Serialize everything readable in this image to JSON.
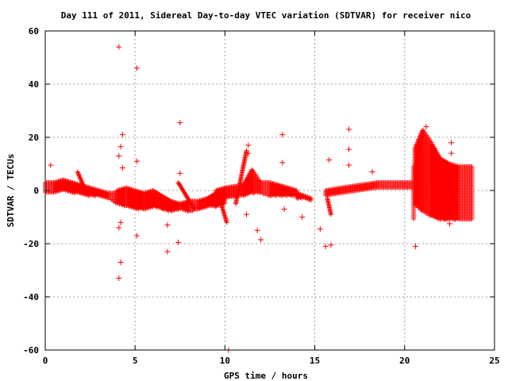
{
  "chart_data": {
    "type": "scatter",
    "title": "Day 111 of 2011, Sidereal Day-to-day VTEC variation (SDTVAR) for receiver nico",
    "xlabel": "GPS time / hours",
    "ylabel": "SDTVAR / TECUs",
    "xlim": [
      0,
      25
    ],
    "ylim": [
      -60,
      60
    ],
    "xticks": [
      "0",
      "5",
      "10",
      "15",
      "20",
      "25"
    ],
    "yticks": [
      "60",
      "40",
      "20",
      "0",
      "-20",
      "-40",
      "-60"
    ],
    "grid": true,
    "marker": "plus",
    "color": "#ff0000",
    "bands": [
      {
        "x": [
          0.0,
          0.5,
          1.0,
          1.5,
          2.0
        ],
        "lo": [
          -1,
          -1,
          0,
          -1,
          -1
        ],
        "hi": [
          3,
          3,
          4,
          3,
          2
        ]
      },
      {
        "x": [
          2.0,
          2.5,
          3.0,
          3.5,
          4.0
        ],
        "lo": [
          -1,
          -2,
          -2,
          -3,
          -5
        ],
        "hi": [
          2,
          1,
          0,
          -1,
          -1
        ]
      },
      {
        "x": [
          4.0,
          4.5,
          5.0,
          5.5,
          6.0
        ],
        "lo": [
          -5,
          -6,
          -7,
          -7,
          -6
        ],
        "hi": [
          0,
          1,
          0,
          -1,
          0
        ]
      },
      {
        "x": [
          6.0,
          6.5,
          7.0,
          7.5,
          8.0
        ],
        "lo": [
          -6,
          -7,
          -8,
          -7,
          -8
        ],
        "hi": [
          0,
          -2,
          -4,
          -5,
          -4
        ]
      },
      {
        "x": [
          8.0,
          8.5,
          9.0,
          9.5,
          10.0
        ],
        "lo": [
          -8,
          -7,
          -6,
          -6,
          -5
        ],
        "hi": [
          -4,
          -4,
          -3,
          -1,
          0
        ]
      },
      {
        "x": [
          9.5,
          10.0,
          11.0,
          11.5,
          12.0
        ],
        "lo": [
          -6,
          -3,
          -2,
          -1,
          -1
        ],
        "hi": [
          0,
          1,
          2,
          8,
          3
        ]
      },
      {
        "x": [
          12.0,
          12.5,
          13.0,
          13.5,
          14.0
        ],
        "lo": [
          -1,
          -2,
          -2,
          -2,
          -2
        ],
        "hi": [
          3,
          3,
          2,
          1,
          0
        ]
      },
      {
        "x": [
          14.0,
          14.4,
          14.8
        ],
        "lo": [
          -3,
          -3,
          -4
        ],
        "hi": [
          -1,
          -2,
          -3
        ]
      },
      {
        "x": [
          15.6,
          16.5,
          17.5,
          18.5,
          19.5,
          20.5
        ],
        "lo": [
          -2,
          -1,
          0,
          1,
          1,
          1
        ],
        "hi": [
          0,
          1,
          2,
          3,
          3,
          3
        ]
      },
      {
        "x": [
          20.5,
          21.0,
          21.5,
          22.0,
          22.5,
          23.0,
          23.8
        ],
        "lo": [
          -5,
          -8,
          -10,
          -11,
          -11,
          -11,
          -11
        ],
        "hi": [
          15,
          23,
          18,
          12,
          10,
          9,
          9
        ]
      }
    ],
    "ramps": [
      {
        "x": [
          1.8,
          2.3
        ],
        "y": [
          7,
          -1
        ]
      },
      {
        "x": [
          7.4,
          8.3
        ],
        "y": [
          3,
          -7
        ]
      },
      {
        "x": [
          9.7,
          10.1
        ],
        "y": [
          -3,
          -12
        ]
      },
      {
        "x": [
          11.2,
          10.6
        ],
        "y": [
          15,
          -5
        ]
      },
      {
        "x": [
          15.7,
          15.9
        ],
        "y": [
          -3,
          -9
        ]
      }
    ],
    "outliers": [
      {
        "x": 0.3,
        "y": 9.5
      },
      {
        "x": 4.1,
        "y": 54
      },
      {
        "x": 5.1,
        "y": 46
      },
      {
        "x": 4.3,
        "y": 21
      },
      {
        "x": 4.2,
        "y": 16.5
      },
      {
        "x": 4.1,
        "y": 13
      },
      {
        "x": 4.3,
        "y": 8.5
      },
      {
        "x": 5.1,
        "y": 11
      },
      {
        "x": 7.5,
        "y": 25.5
      },
      {
        "x": 7.5,
        "y": 6.5
      },
      {
        "x": 4.1,
        "y": -14
      },
      {
        "x": 4.2,
        "y": -12
      },
      {
        "x": 4.2,
        "y": -27
      },
      {
        "x": 4.1,
        "y": -33
      },
      {
        "x": 5.1,
        "y": -17
      },
      {
        "x": 6.8,
        "y": -13
      },
      {
        "x": 6.8,
        "y": -23
      },
      {
        "x": 7.4,
        "y": -19.5
      },
      {
        "x": 10.2,
        "y": -60
      },
      {
        "x": 11.3,
        "y": 17
      },
      {
        "x": 11.3,
        "y": 14
      },
      {
        "x": 11.2,
        "y": -9
      },
      {
        "x": 11.8,
        "y": -15
      },
      {
        "x": 12.0,
        "y": -18.5
      },
      {
        "x": 13.2,
        "y": 21
      },
      {
        "x": 13.2,
        "y": 10.5
      },
      {
        "x": 13.3,
        "y": -7
      },
      {
        "x": 14.3,
        "y": -10
      },
      {
        "x": 15.3,
        "y": -14.5
      },
      {
        "x": 15.6,
        "y": -21
      },
      {
        "x": 15.8,
        "y": 11.5
      },
      {
        "x": 15.9,
        "y": -20.5
      },
      {
        "x": 16.9,
        "y": 23
      },
      {
        "x": 16.9,
        "y": 15.5
      },
      {
        "x": 16.9,
        "y": 9.5
      },
      {
        "x": 18.2,
        "y": 7
      },
      {
        "x": 20.6,
        "y": -21
      },
      {
        "x": 21.2,
        "y": 24
      },
      {
        "x": 22.6,
        "y": 18
      },
      {
        "x": 22.6,
        "y": 14
      },
      {
        "x": 22.5,
        "y": -12.5
      }
    ]
  }
}
